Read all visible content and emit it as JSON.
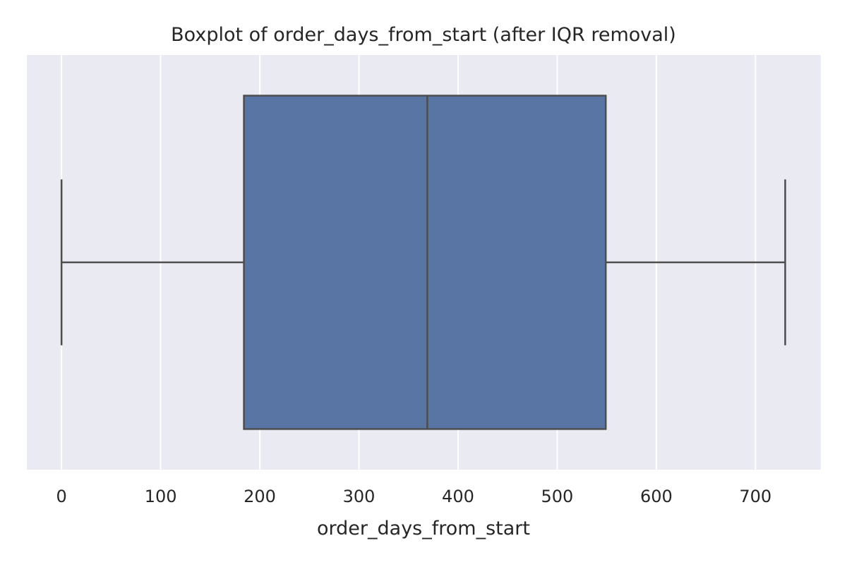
{
  "chart_data": {
    "type": "box",
    "orientation": "horizontal",
    "title": "Boxplot of order_days_from_start (after IQR removal)",
    "xlabel": "order_days_from_start",
    "ylabel": "",
    "xlim": [
      -35,
      766
    ],
    "xticks": [
      0,
      100,
      200,
      300,
      400,
      500,
      600,
      700
    ],
    "xtick_labels": [
      "0",
      "100",
      "200",
      "300",
      "400",
      "500",
      "600",
      "700"
    ],
    "grid": true,
    "box": {
      "whisker_low": 0,
      "q1": 184,
      "median": 369,
      "q3": 549,
      "whisker_high": 730
    },
    "colors": {
      "plot_background": "#eaeaf2",
      "grid": "#ffffff",
      "box_fill": "#5875a4",
      "lines": "#4d4d4d",
      "text": "#262626"
    }
  }
}
